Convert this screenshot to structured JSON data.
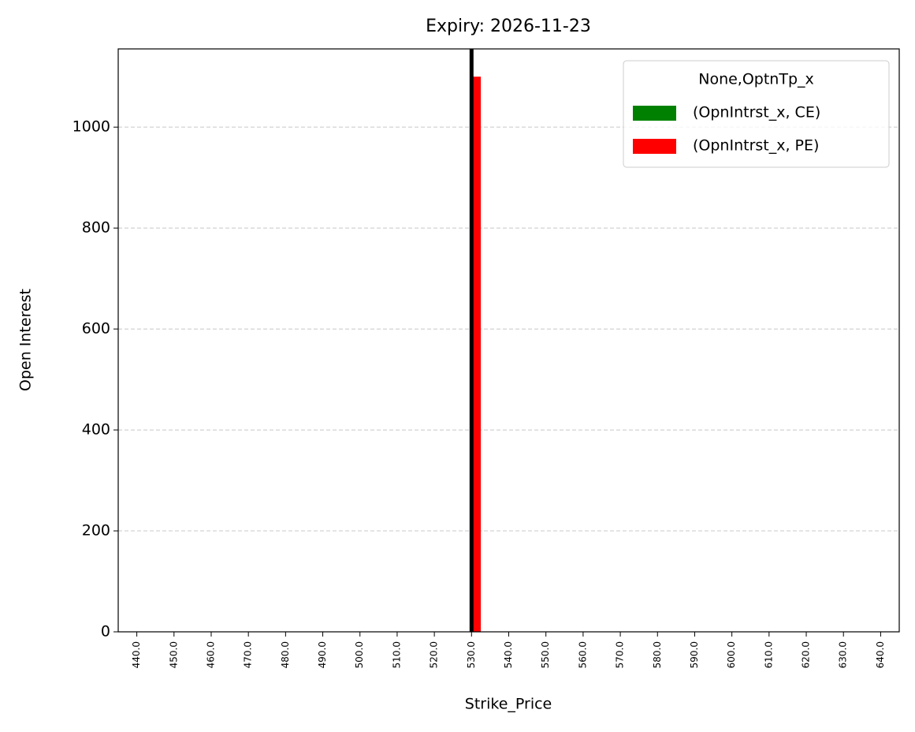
{
  "chart_data": {
    "type": "bar",
    "title": "Expiry: 2026-11-23",
    "x_label": "Strike_Price",
    "y_label": "Open Interest",
    "categories": [
      "440.0",
      "450.0",
      "460.0",
      "470.0",
      "480.0",
      "490.0",
      "500.0",
      "510.0",
      "520.0",
      "530.0",
      "540.0",
      "550.0",
      "560.0",
      "570.0",
      "580.0",
      "590.0",
      "600.0",
      "610.0",
      "620.0",
      "630.0",
      "640.0"
    ],
    "series": [
      {
        "name": "(OpnIntrst_x, CE)",
        "color": "#008000",
        "values": [
          0,
          0,
          0,
          0,
          0,
          0,
          0,
          0,
          0,
          0,
          0,
          0,
          0,
          0,
          0,
          0,
          0,
          0,
          0,
          0,
          0
        ]
      },
      {
        "name": "(OpnIntrst_x, PE)",
        "color": "#ff0000",
        "values": [
          0,
          0,
          0,
          0,
          0,
          0,
          0,
          0,
          0,
          1100,
          0,
          0,
          0,
          0,
          0,
          0,
          0,
          0,
          0,
          0,
          0
        ]
      }
    ],
    "legend_title": "None,OptnTp_x",
    "legend": "upper right",
    "marker_line": {
      "category": "530.0",
      "color": "#000000"
    },
    "ylim": [
      0,
      1155
    ],
    "yticks": [
      0,
      200,
      400,
      600,
      800,
      1000
    ],
    "grid": true
  }
}
